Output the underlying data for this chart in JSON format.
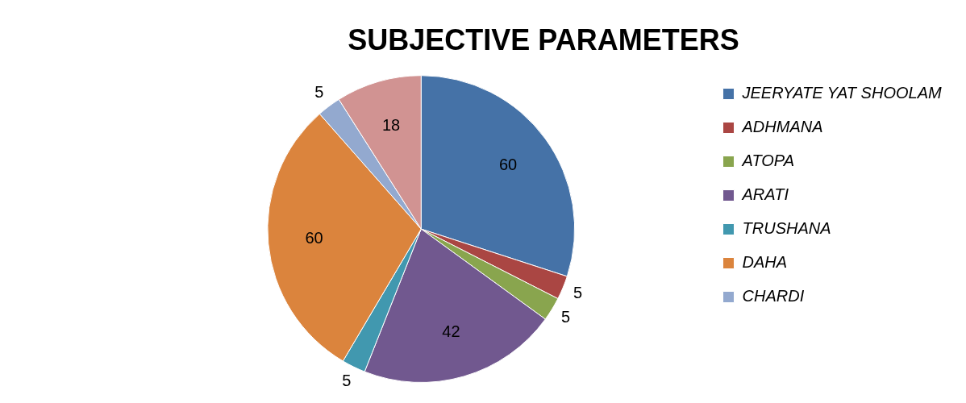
{
  "chart_data": {
    "type": "pie",
    "title": "SUBJECTIVE PARAMETERS",
    "categories": [
      "JEERYATE YAT SHOOLAM",
      "ADHMANA",
      "ATOPA",
      "ARATI",
      "TRUSHANA",
      "DAHA",
      "CHARDI",
      null
    ],
    "values": [
      60,
      5,
      5,
      42,
      5,
      60,
      5,
      18
    ],
    "colors": [
      "#4572a7",
      "#aa4643",
      "#89a54e",
      "#71588f",
      "#4198af",
      "#db843d",
      "#93a9cf",
      "#d19392"
    ],
    "data_labels": true,
    "legend": "right"
  }
}
